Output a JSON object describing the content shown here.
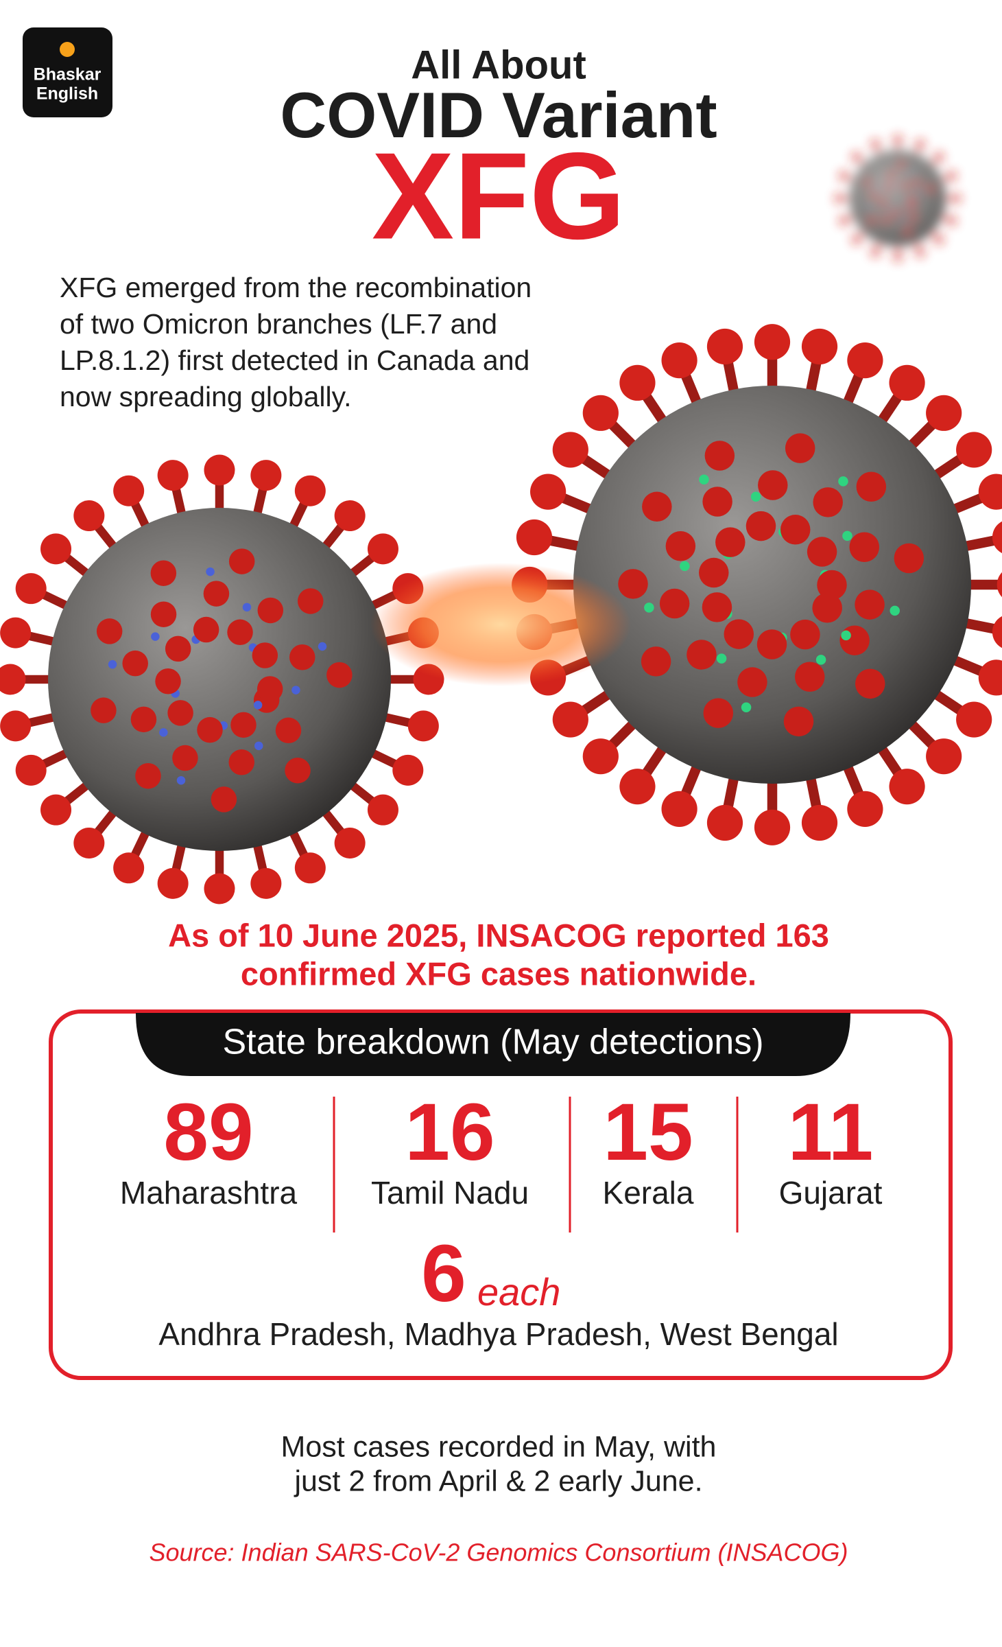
{
  "logo": {
    "line1": "Bhaskar",
    "line2": "English"
  },
  "header": {
    "kicker": "All About",
    "title": "COVID Variant",
    "variant": "XFG"
  },
  "intro": [
    "XFG emerged from the recombination",
    "of two Omicron branches (LF.7 and",
    "LP.8.1.2) first detected in Canada and",
    "now spreading globally."
  ],
  "headline": [
    "As of 10 June 2025, INSACOG reported 163",
    "confirmed XFG cases nationwide."
  ],
  "breakdown": {
    "title": "State breakdown (May detections)",
    "states": [
      {
        "count": "89",
        "name": "Maharashtra"
      },
      {
        "count": "16",
        "name": "Tamil Nadu"
      },
      {
        "count": "15",
        "name": "Kerala"
      },
      {
        "count": "11",
        "name": "Gujarat"
      }
    ],
    "group": {
      "count": "6",
      "suffix": "each",
      "names": "Andhra Pradesh, Madhya Pradesh, West Bengal"
    }
  },
  "note": [
    "Most cases recorded in May, with",
    "just 2 from April & 2 early June."
  ],
  "source": "Source: Indian SARS-CoV-2 Genomics Consortium (INSACOG)"
}
